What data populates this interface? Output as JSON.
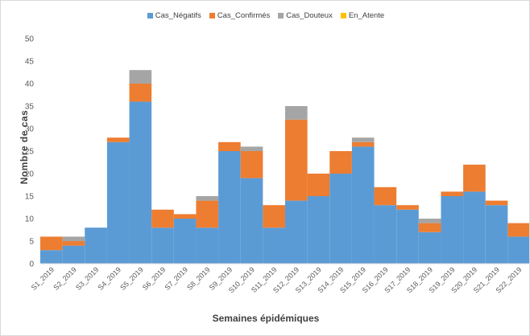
{
  "chart_data": {
    "type": "bar",
    "stacked": true,
    "title": "",
    "xlabel": "Semaines épidémiques",
    "ylabel": "Nombre de cas",
    "ylim": [
      0,
      50
    ],
    "yticks": [
      0,
      5,
      10,
      15,
      20,
      25,
      30,
      35,
      40,
      45,
      50
    ],
    "grid": false,
    "legend_position": "top",
    "categories": [
      "S1_2019",
      "S2_2019",
      "S3_2019",
      "S4_2019",
      "S5_2019",
      "S6_2019",
      "S7_2019",
      "S8_2019",
      "S9_2019",
      "S10_2019",
      "S11_2019",
      "S12_2019",
      "S13_2019",
      "S14_2019",
      "S15_2019",
      "S16_2019",
      "S17_2019",
      "S18_2019",
      "S19_2019",
      "S20_2019",
      "S21_2019",
      "S22_2019"
    ],
    "series": [
      {
        "name": "Cas_Négatifs",
        "color": "#5b9bd5",
        "values": [
          3,
          4,
          8,
          27,
          36,
          8,
          10,
          8,
          25,
          19,
          8,
          14,
          15,
          20,
          26,
          13,
          12,
          7,
          15,
          16,
          13,
          6
        ]
      },
      {
        "name": "Cas_Confirmés",
        "color": "#ed7d31",
        "values": [
          3,
          1,
          0,
          1,
          4,
          4,
          1,
          6,
          2,
          6,
          5,
          18,
          5,
          5,
          1,
          4,
          1,
          2,
          1,
          6,
          1,
          3
        ]
      },
      {
        "name": "Cas_Douteux",
        "color": "#a5a5a5",
        "values": [
          0,
          1,
          0,
          0,
          3,
          0,
          0,
          1,
          0,
          1,
          0,
          3,
          0,
          0,
          1,
          0,
          0,
          1,
          0,
          0,
          0,
          0
        ]
      },
      {
        "name": "En_Atente",
        "color": "#ffc000",
        "values": [
          0,
          0,
          0,
          0,
          0,
          0,
          0,
          0,
          0,
          0,
          0,
          0,
          0,
          0,
          0,
          0,
          0,
          0,
          0,
          0,
          0,
          0
        ]
      }
    ]
  }
}
